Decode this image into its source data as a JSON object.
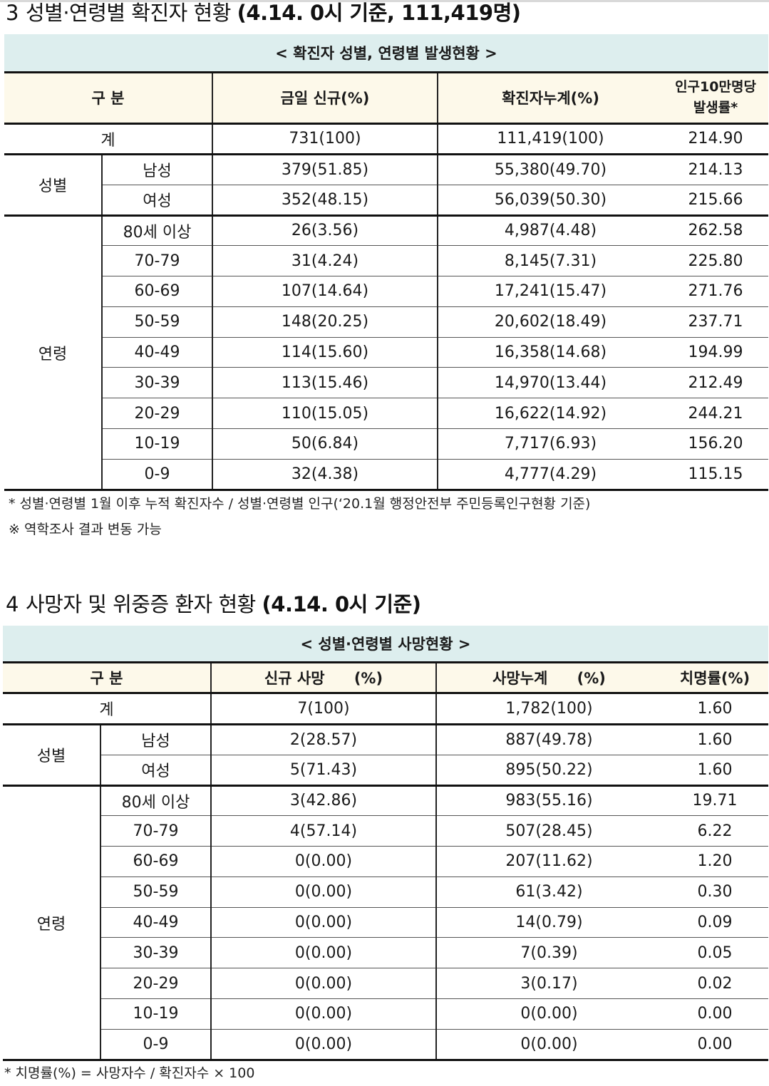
{
  "section3": {
    "number": "3",
    "title_plain": "성별·연령별 확진자 현황",
    "title_bold": "(4.14. 0시 기준, 111,419명)",
    "caption": "< 확진자 성별, 연령별 발생현황 >",
    "headers": {
      "category": "구 분",
      "today_new": "금일 신규(%)",
      "cumulative": "확진자누계(%)",
      "rate_line1": "인구10만명당",
      "rate_line2": "발생률*"
    },
    "total": {
      "label": "계",
      "new": "731(100)",
      "cum": "111,419(100)",
      "rate": "214.90"
    },
    "sex_group": "성별",
    "sex_rows": [
      {
        "label": "남성",
        "new": "379(51.85)",
        "cum": "55,380(49.70)",
        "rate": "214.13"
      },
      {
        "label": "여성",
        "new": "352(48.15)",
        "cum": "56,039(50.30)",
        "rate": "215.66"
      }
    ],
    "age_group": "연령",
    "age_rows": [
      {
        "label": "80세 이상",
        "new": "26(3.56)",
        "cum": "4,987(4.48)",
        "rate": "262.58"
      },
      {
        "label": "70-79",
        "new": "31(4.24)",
        "cum": "8,145(7.31)",
        "rate": "225.80"
      },
      {
        "label": "60-69",
        "new": "107(14.64)",
        "cum": "17,241(15.47)",
        "rate": "271.76"
      },
      {
        "label": "50-59",
        "new": "148(20.25)",
        "cum": "20,602(18.49)",
        "rate": "237.71"
      },
      {
        "label": "40-49",
        "new": "114(15.60)",
        "cum": "16,358(14.68)",
        "rate": "194.99"
      },
      {
        "label": "30-39",
        "new": "113(15.46)",
        "cum": "14,970(13.44)",
        "rate": "212.49"
      },
      {
        "label": "20-29",
        "new": "110(15.05)",
        "cum": "16,622(14.92)",
        "rate": "244.21"
      },
      {
        "label": "10-19",
        "new": "50(6.84)",
        "cum": "7,717(6.93)",
        "rate": "156.20"
      },
      {
        "label": "0-9",
        "new": "32(4.38)",
        "cum": "4,777(4.29)",
        "rate": "115.15"
      }
    ],
    "note1": "* 성별·연령별 1월 이후 누적 확진자수 / 성별·연령별 인구(‘20.1월 행정안전부 주민등록인구현황 기준)",
    "note2": "※ 역학조사 결과 변동 가능"
  },
  "section4": {
    "number": "4",
    "title_plain": "사망자 및 위중증 환자 현황",
    "title_bold": "(4.14. 0시 기준)",
    "caption": "< 성별·연령별 사망현황 >",
    "headers": {
      "category": "구 분",
      "new_deaths": "신규 사망",
      "new_pct": "(%)",
      "cum_deaths": "사망누계",
      "cum_pct": "(%)",
      "fatality": "치명률(%)"
    },
    "total": {
      "label": "계",
      "new": "7(100)",
      "cum": "1,782(100)",
      "rate": "1.60"
    },
    "sex_group": "성별",
    "sex_rows": [
      {
        "label": "남성",
        "new": "2(28.57)",
        "cum": "887(49.78)",
        "rate": "1.60"
      },
      {
        "label": "여성",
        "new": "5(71.43)",
        "cum": "895(50.22)",
        "rate": "1.60"
      }
    ],
    "age_group": "연령",
    "age_rows": [
      {
        "label": "80세 이상",
        "new": "3(42.86)",
        "cum": "983(55.16)",
        "rate": "19.71"
      },
      {
        "label": "70-79",
        "new": "4(57.14)",
        "cum": "507(28.45)",
        "rate": "6.22"
      },
      {
        "label": "60-69",
        "new": "0(0.00)",
        "cum": "207(11.62)",
        "rate": "1.20"
      },
      {
        "label": "50-59",
        "new": "0(0.00)",
        "cum": "61(3.42)",
        "rate": "0.30"
      },
      {
        "label": "40-49",
        "new": "0(0.00)",
        "cum": "14(0.79)",
        "rate": "0.09"
      },
      {
        "label": "30-39",
        "new": "0(0.00)",
        "cum": "7(0.39)",
        "rate": "0.05"
      },
      {
        "label": "20-29",
        "new": "0(0.00)",
        "cum": "3(0.17)",
        "rate": "0.02"
      },
      {
        "label": "10-19",
        "new": "0(0.00)",
        "cum": "0(0.00)",
        "rate": "0.00"
      },
      {
        "label": "0-9",
        "new": "0(0.00)",
        "cum": "0(0.00)",
        "rate": "0.00"
      }
    ],
    "note1": "* 치명률(%) = 사망자수 / 확진자수 × 100"
  }
}
